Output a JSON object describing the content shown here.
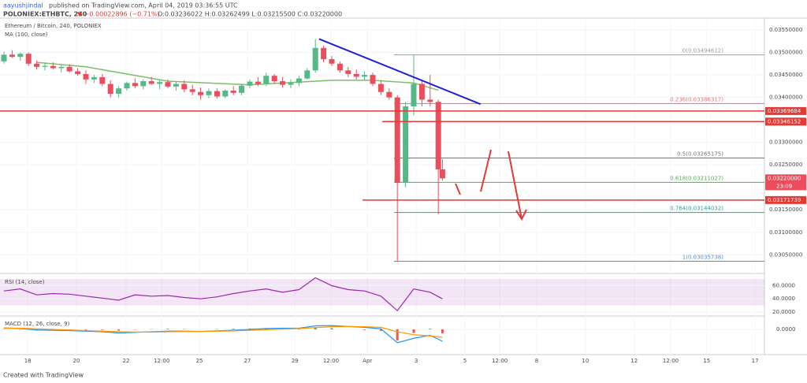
{
  "header": {
    "author": "aayushjindal",
    "published": "published on TradingView.com, April 04, 2019 03:36:55 UTC",
    "symbol": "POLONIEX:ETHBTC, 240",
    "change": "▼ −0.00022896 (−0.71%)",
    "ohlc": "O:0.03236022 H:0.03262499 L:0.03215500 C:0.03220000"
  },
  "footer": "Created with TradingView",
  "chart_data": [
    {
      "type": "candlestick",
      "title": "Ethereum / Bitcoin, 240, POLONIEX",
      "subtitle": "MA (100, close)",
      "x": [
        0,
        2,
        4,
        6,
        8,
        10,
        12,
        14,
        16,
        18,
        20,
        22,
        24,
        26,
        28,
        30,
        32,
        34,
        36,
        38,
        40,
        42,
        44,
        46,
        48,
        50,
        52,
        54,
        56,
        58,
        60,
        62,
        64,
        66,
        68,
        70,
        72,
        74,
        76,
        78,
        80,
        82,
        84,
        86,
        88,
        90,
        92,
        94,
        96,
        98,
        100,
        102,
        104,
        106,
        107
      ],
      "open": [
        0.0348,
        0.03495,
        0.0349,
        0.03497,
        0.03475,
        0.03468,
        0.0347,
        0.03465,
        0.03468,
        0.03458,
        0.03452,
        0.0344,
        0.03445,
        0.0343,
        0.03408,
        0.0342,
        0.03432,
        0.03425,
        0.03436,
        0.0343,
        0.03434,
        0.03424,
        0.0343,
        0.03418,
        0.03412,
        0.03405,
        0.03414,
        0.03402,
        0.03415,
        0.0341,
        0.03426,
        0.03435,
        0.0343,
        0.03448,
        0.03436,
        0.03428,
        0.03432,
        0.03442,
        0.0346,
        0.0351,
        0.03485,
        0.03475,
        0.0346,
        0.03452,
        0.03446,
        0.0345,
        0.0343,
        0.03412,
        0.034,
        0.0321,
        0.0338,
        0.0343,
        0.03395,
        0.0339,
        0.0324
      ],
      "high": [
        0.03502,
        0.03505,
        0.035,
        0.035,
        0.03482,
        0.03476,
        0.03478,
        0.03472,
        0.03474,
        0.03465,
        0.0346,
        0.0345,
        0.03452,
        0.03438,
        0.03425,
        0.03435,
        0.03442,
        0.0344,
        0.03445,
        0.03438,
        0.0344,
        0.03436,
        0.03438,
        0.03428,
        0.03422,
        0.0342,
        0.0342,
        0.03418,
        0.03425,
        0.0343,
        0.0344,
        0.03445,
        0.03455,
        0.03452,
        0.03445,
        0.0344,
        0.03448,
        0.03465,
        0.0353,
        0.03515,
        0.03492,
        0.0348,
        0.03468,
        0.03462,
        0.03458,
        0.03455,
        0.03438,
        0.0342,
        0.03405,
        0.0339,
        0.03495,
        0.0344,
        0.0345,
        0.03395,
        0.03262499
      ],
      "low": [
        0.03475,
        0.03488,
        0.03482,
        0.0347,
        0.03462,
        0.0346,
        0.03462,
        0.03455,
        0.03455,
        0.03448,
        0.0343,
        0.03432,
        0.03425,
        0.034,
        0.034,
        0.03415,
        0.0342,
        0.03418,
        0.03428,
        0.03418,
        0.0342,
        0.03415,
        0.03412,
        0.03405,
        0.03395,
        0.03398,
        0.03398,
        0.03398,
        0.03405,
        0.03405,
        0.0342,
        0.03425,
        0.03425,
        0.0343,
        0.03422,
        0.0342,
        0.03425,
        0.0344,
        0.03455,
        0.03478,
        0.0347,
        0.03455,
        0.03445,
        0.0344,
        0.03438,
        0.03425,
        0.03405,
        0.03395,
        0.03035,
        0.032,
        0.0336,
        0.0338,
        0.0338,
        0.0314,
        0.032155
      ],
      "close": [
        0.03495,
        0.0349,
        0.03497,
        0.03475,
        0.03468,
        0.0347,
        0.03465,
        0.03468,
        0.03458,
        0.03452,
        0.0344,
        0.03445,
        0.0343,
        0.03408,
        0.0342,
        0.03432,
        0.03425,
        0.03436,
        0.0343,
        0.03434,
        0.03424,
        0.0343,
        0.03418,
        0.03412,
        0.03405,
        0.03414,
        0.03402,
        0.03415,
        0.0341,
        0.03426,
        0.03435,
        0.0343,
        0.03448,
        0.03436,
        0.03428,
        0.03432,
        0.03442,
        0.0346,
        0.0351,
        0.03485,
        0.03475,
        0.0346,
        0.03452,
        0.03446,
        0.0345,
        0.0343,
        0.03412,
        0.034,
        0.0321,
        0.0338,
        0.0343,
        0.03395,
        0.0339,
        0.0324,
        0.0322
      ],
      "up_color": "#53b987",
      "down_color": "#eb4d5c",
      "overlays": [
        {
          "color": "#7cbf6a",
          "x": [
            8,
            20,
            40,
            60,
            80,
            90,
            100,
            106
          ],
          "values": [
            0.03478,
            0.03468,
            0.03436,
            0.03428,
            0.03438,
            0.03438,
            0.03432,
            0.03416
          ]
        }
      ],
      "trendline": {
        "color": "#1f1fd6",
        "x": [
          76.9,
          116.3
        ],
        "values": [
          0.0353,
          0.03385
        ]
      },
      "levels": [
        {
          "value": 0.03369684,
          "label": "0.03369684",
          "color": "#e53935"
        },
        {
          "value": 0.03346152,
          "label": "0.03346152",
          "color": "#e53935"
        },
        {
          "value": 0.03171739,
          "label": "0.03171739",
          "color": "#e53935"
        }
      ],
      "fib": [
        {
          "value": 0.03494612,
          "label": "0(0.03494612)",
          "color": "#9e9e9e"
        },
        {
          "value": 0.03386317,
          "label": "0.236(0.03386317)",
          "color": "#e57373"
        },
        {
          "value": 0.03265175,
          "label": "0.5(0.03265175)",
          "color": "#757575"
        },
        {
          "value": 0.03211027,
          "label": "0.618(0.03211027)",
          "color": "#4caf50"
        },
        {
          "value": 0.03144032,
          "label": "0.764(0.03144032)",
          "color": "#26a69a"
        },
        {
          "value": 0.03035738,
          "label": "1(0.03035738)",
          "color": "#4a90d9"
        }
      ],
      "last_price": {
        "value": 0.0322,
        "label": "0.03220000",
        "countdown": "23:09",
        "color": "#eb4d5c"
      },
      "xlim": [
        -0.96,
        185.58
      ],
      "ylim": [
        0.03012,
        0.03571
      ],
      "yticks": [
        {
          "value": 0.0355,
          "label": "0.03550000"
        },
        {
          "value": 0.035,
          "label": "0.03500000"
        },
        {
          "value": 0.0345,
          "label": "0.03450000"
        },
        {
          "value": 0.034,
          "label": "0.03400000"
        },
        {
          "value": 0.033,
          "label": "0.03300000"
        },
        {
          "value": 0.0325,
          "label": "0.03250000"
        },
        {
          "value": 0.0315,
          "label": "0.03150000"
        },
        {
          "value": 0.031,
          "label": "0.03100000"
        },
        {
          "value": 0.0305,
          "label": "0.03050000"
        }
      ]
    },
    {
      "type": "line",
      "title": "RSI (14, close)",
      "color": "#9c27b0",
      "band": [
        30,
        70
      ],
      "x": [
        0,
        4,
        8,
        12,
        16,
        20,
        24,
        28,
        32,
        36,
        40,
        44,
        48,
        52,
        56,
        60,
        64,
        68,
        72,
        76,
        80,
        84,
        88,
        92,
        96,
        100,
        104,
        107
      ],
      "values": [
        52,
        55,
        46,
        48,
        47,
        44,
        41,
        38,
        46,
        44,
        45,
        42,
        40,
        43,
        48,
        52,
        55,
        50,
        54,
        72,
        60,
        54,
        52,
        44,
        22,
        55,
        50,
        40
      ],
      "xlim": [
        -0.96,
        185.58
      ],
      "ylim": [
        15,
        75
      ],
      "yticks": [
        {
          "value": 60,
          "label": "60.0000"
        },
        {
          "value": 40,
          "label": "40.0000"
        },
        {
          "value": 20,
          "label": "20.0000"
        }
      ]
    },
    {
      "type": "macd",
      "title": "MACD (12, 26, close, 9)",
      "x": [
        0,
        4,
        8,
        12,
        16,
        20,
        24,
        28,
        32,
        36,
        40,
        44,
        48,
        52,
        56,
        60,
        64,
        68,
        72,
        76,
        80,
        84,
        88,
        92,
        96,
        100,
        104,
        107
      ],
      "series": [
        {
          "color": "#2196f3",
          "values": [
            5e-05,
            3e-05,
            -2e-05,
            -3e-05,
            -4e-05,
            -6e-05,
            -8e-05,
            -0.00012,
            -0.0001,
            -8e-05,
            -6e-05,
            -6e-05,
            -7e-05,
            -5e-05,
            -3e-05,
            0,
            3e-05,
            4e-05,
            4e-05,
            0.00012,
            0.00013,
            0.0001,
            7e-05,
            2e-05,
            -0.00045,
            -0.0003,
            -0.0002,
            -0.0004
          ]
        },
        {
          "color": "#ff9800",
          "values": [
            4e-05,
            4e-05,
            2e-05,
            0,
            -2e-05,
            -4e-05,
            -6e-05,
            -8e-05,
            -9e-05,
            -9e-05,
            -8e-05,
            -7e-05,
            -7e-05,
            -6e-05,
            -5e-05,
            -3e-05,
            -1e-05,
            1e-05,
            3e-05,
            6e-05,
            9e-05,
            0.0001,
            9e-05,
            7e-05,
            -8e-05,
            -0.00018,
            -0.00022,
            -0.00027
          ]
        }
      ],
      "histogram": {
        "up_color": "#26a69a",
        "down_color": "#ef5350",
        "values": [
          1e-05,
          -1e-05,
          -4e-05,
          -3e-05,
          -2e-05,
          -2e-05,
          -2e-05,
          -4e-05,
          -1e-05,
          1e-05,
          2e-05,
          1e-05,
          0,
          1e-05,
          2e-05,
          3e-05,
          4e-05,
          3e-05,
          1e-05,
          6e-05,
          4e-05,
          0,
          -2e-05,
          -5e-05,
          -0.00037,
          -0.00012,
          2e-05,
          -0.00013
        ]
      },
      "xlim": [
        -0.96,
        185.58
      ],
      "ylim": [
        -0.0008,
        0.0004
      ],
      "yticks": [
        {
          "value": 0,
          "label": "0.0000"
        }
      ],
      "xticks": [
        {
          "value": 5.8,
          "label": "18"
        },
        {
          "value": 17.7,
          "label": "20"
        },
        {
          "value": 29.8,
          "label": "22"
        },
        {
          "value": 38.5,
          "label": "12:00"
        },
        {
          "value": 47.7,
          "label": "25"
        },
        {
          "value": 59.4,
          "label": "27"
        },
        {
          "value": 71,
          "label": "29"
        },
        {
          "value": 79.8,
          "label": "12:00"
        },
        {
          "value": 88.7,
          "label": "Apr"
        },
        {
          "value": 100.6,
          "label": "3"
        },
        {
          "value": 112.5,
          "label": "5"
        },
        {
          "value": 121,
          "label": "12:00"
        },
        {
          "value": 130,
          "label": "8"
        },
        {
          "value": 141.9,
          "label": "10"
        },
        {
          "value": 153.8,
          "label": "12"
        },
        {
          "value": 162.7,
          "label": "12:00"
        },
        {
          "value": 171.5,
          "label": "15"
        },
        {
          "value": 183.3,
          "label": "17"
        }
      ]
    }
  ]
}
